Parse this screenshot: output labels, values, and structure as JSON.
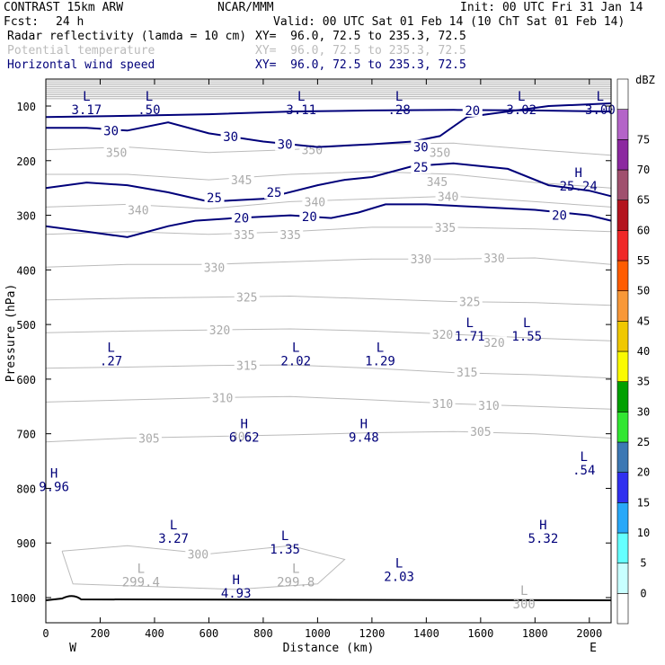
{
  "header": {
    "model": "CONTRAST 15km ARW",
    "source": "NCAR/MMM",
    "init": "Init: 00 UTC Fri 31 Jan 14",
    "fcst_label": "Fcst:",
    "fcst_value": "24 h",
    "valid": "Valid: 00 UTC Sat 01 Feb 14 (10 ChT Sat 01 Feb 14)"
  },
  "fields": [
    {
      "name": "Radar reflectivity (lamda = 10 cm)",
      "xy": "XY=  96.0, 72.5 to 235.3, 72.5",
      "color": "#000000"
    },
    {
      "name": "Potential temperature",
      "xy": "XY=  96.0, 72.5 to 235.3, 72.5",
      "color": "#bbbbbb"
    },
    {
      "name": "Horizontal wind speed",
      "xy": "XY=  96.0, 72.5 to 235.3, 72.5",
      "color": "#00007a"
    }
  ],
  "chart_data": {
    "type": "contour-cross-section",
    "xlabel": "Distance (km)",
    "ylabel": "Pressure (hPa)",
    "xlim": [
      0,
      2080
    ],
    "ylim_hpa": [
      1000,
      50
    ],
    "x_ticks": [
      0,
      200,
      400,
      600,
      800,
      1000,
      1200,
      1400,
      1600,
      1800,
      2000
    ],
    "y_ticks": [
      100,
      200,
      300,
      400,
      500,
      600,
      700,
      800,
      900,
      1000
    ],
    "x_end_labels": {
      "left": "W",
      "right": "E"
    },
    "theta_contours": [
      {
        "label": "350",
        "points": [
          [
            0,
            180
          ],
          [
            300,
            175
          ],
          [
            600,
            185
          ],
          [
            900,
            180
          ],
          [
            1200,
            170
          ],
          [
            1500,
            168
          ],
          [
            1800,
            180
          ],
          [
            2080,
            190
          ]
        ],
        "labels_at": [
          [
            260,
            185
          ],
          [
            980,
            180
          ],
          [
            1450,
            185
          ]
        ]
      },
      {
        "label": "345",
        "points": [
          [
            0,
            225
          ],
          [
            300,
            225
          ],
          [
            600,
            235
          ],
          [
            900,
            225
          ],
          [
            1200,
            220
          ],
          [
            1500,
            225
          ],
          [
            1800,
            240
          ],
          [
            2080,
            250
          ]
        ],
        "labels_at": [
          [
            720,
            235
          ],
          [
            1440,
            238
          ]
        ]
      },
      {
        "label": "340",
        "points": [
          [
            0,
            285
          ],
          [
            300,
            280
          ],
          [
            600,
            288
          ],
          [
            900,
            275
          ],
          [
            1200,
            270
          ],
          [
            1500,
            265
          ],
          [
            1800,
            275
          ],
          [
            2080,
            285
          ]
        ],
        "labels_at": [
          [
            340,
            290
          ],
          [
            990,
            275
          ],
          [
            1480,
            265
          ]
        ]
      },
      {
        "label": "335",
        "points": [
          [
            0,
            335
          ],
          [
            300,
            330
          ],
          [
            600,
            335
          ],
          [
            900,
            330
          ],
          [
            1200,
            322
          ],
          [
            1500,
            322
          ],
          [
            1800,
            325
          ],
          [
            2080,
            330
          ]
        ],
        "labels_at": [
          [
            730,
            335
          ],
          [
            900,
            335
          ],
          [
            1470,
            322
          ]
        ]
      },
      {
        "label": "330",
        "points": [
          [
            0,
            395
          ],
          [
            300,
            390
          ],
          [
            600,
            390
          ],
          [
            900,
            385
          ],
          [
            1200,
            380
          ],
          [
            1500,
            380
          ],
          [
            1800,
            378
          ],
          [
            2080,
            390
          ]
        ],
        "labels_at": [
          [
            620,
            395
          ],
          [
            1380,
            380
          ],
          [
            1650,
            378
          ]
        ]
      },
      {
        "label": "325",
        "points": [
          [
            0,
            455
          ],
          [
            300,
            452
          ],
          [
            600,
            450
          ],
          [
            900,
            448
          ],
          [
            1200,
            453
          ],
          [
            1500,
            458
          ],
          [
            1800,
            460
          ],
          [
            2080,
            465
          ]
        ],
        "labels_at": [
          [
            740,
            450
          ],
          [
            1560,
            458
          ]
        ]
      },
      {
        "label": "320",
        "points": [
          [
            0,
            515
          ],
          [
            300,
            512
          ],
          [
            600,
            510
          ],
          [
            900,
            508
          ],
          [
            1200,
            512
          ],
          [
            1500,
            518
          ],
          [
            1800,
            525
          ],
          [
            2080,
            530
          ]
        ],
        "labels_at": [
          [
            640,
            510
          ],
          [
            1460,
            518
          ],
          [
            1650,
            533
          ]
        ]
      },
      {
        "label": "315",
        "points": [
          [
            0,
            580
          ],
          [
            300,
            578
          ],
          [
            600,
            575
          ],
          [
            900,
            574
          ],
          [
            1200,
            580
          ],
          [
            1500,
            588
          ],
          [
            1800,
            592
          ],
          [
            2080,
            598
          ]
        ],
        "labels_at": [
          [
            740,
            575
          ],
          [
            1550,
            587
          ]
        ]
      },
      {
        "label": "310",
        "points": [
          [
            0,
            642
          ],
          [
            300,
            638
          ],
          [
            600,
            634
          ],
          [
            900,
            632
          ],
          [
            1200,
            638
          ],
          [
            1500,
            645
          ],
          [
            1800,
            650
          ],
          [
            2080,
            655
          ]
        ],
        "labels_at": [
          [
            650,
            634
          ],
          [
            1460,
            645
          ],
          [
            1630,
            648
          ]
        ]
      },
      {
        "label": "305",
        "points": [
          [
            0,
            715
          ],
          [
            300,
            708
          ],
          [
            600,
            705
          ],
          [
            900,
            702
          ],
          [
            1200,
            698
          ],
          [
            1500,
            696
          ],
          [
            1800,
            700
          ],
          [
            2080,
            708
          ]
        ],
        "labels_at": [
          [
            380,
            708
          ],
          [
            720,
            705
          ],
          [
            1600,
            696
          ]
        ]
      },
      {
        "label": "300",
        "points": [
          [
            60,
            915
          ],
          [
            300,
            905
          ],
          [
            600,
            920
          ],
          [
            900,
            905
          ],
          [
            1100,
            930
          ],
          [
            1000,
            975
          ],
          [
            700,
            985
          ],
          [
            400,
            980
          ],
          [
            100,
            975
          ],
          [
            60,
            915
          ]
        ],
        "labels_at": [
          [
            560,
            920
          ]
        ]
      }
    ],
    "wind_contours": [
      {
        "label": "30",
        "points": [
          [
            0,
            140
          ],
          [
            150,
            140
          ],
          [
            300,
            145
          ],
          [
            450,
            130
          ],
          [
            600,
            150
          ],
          [
            800,
            165
          ],
          [
            1000,
            175
          ],
          [
            1200,
            170
          ],
          [
            1350,
            165
          ],
          [
            1450,
            155
          ],
          [
            1550,
            120
          ],
          [
            1700,
            110
          ],
          [
            1850,
            100
          ],
          [
            2080,
            95
          ]
        ],
        "labels_at": [
          [
            240,
            145
          ],
          [
            680,
            156
          ],
          [
            880,
            170
          ],
          [
            1380,
            175
          ]
        ]
      },
      {
        "label": "25",
        "points": [
          [
            0,
            250
          ],
          [
            150,
            240
          ],
          [
            300,
            245
          ],
          [
            450,
            258
          ],
          [
            600,
            275
          ],
          [
            800,
            270
          ],
          [
            1000,
            245
          ],
          [
            1100,
            235
          ],
          [
            1200,
            230
          ],
          [
            1350,
            210
          ],
          [
            1500,
            205
          ],
          [
            1700,
            215
          ],
          [
            1850,
            245
          ],
          [
            2000,
            255
          ],
          [
            2080,
            265
          ]
        ],
        "labels_at": [
          [
            620,
            268
          ],
          [
            840,
            258
          ],
          [
            1380,
            212
          ]
        ]
      },
      {
        "label": "20",
        "points": [
          [
            0,
            320
          ],
          [
            150,
            330
          ],
          [
            300,
            340
          ],
          [
            450,
            320
          ],
          [
            550,
            310
          ],
          [
            700,
            305
          ],
          [
            900,
            300
          ],
          [
            1050,
            305
          ],
          [
            1150,
            295
          ],
          [
            1250,
            280
          ],
          [
            1400,
            280
          ],
          [
            1600,
            285
          ],
          [
            1800,
            290
          ],
          [
            2000,
            300
          ],
          [
            2080,
            310
          ]
        ],
        "labels_at": [
          [
            720,
            305
          ],
          [
            970,
            302
          ],
          [
            1890,
            300
          ]
        ]
      },
      {
        "label": "20",
        "points": [
          [
            0,
            120
          ],
          [
            300,
            118
          ],
          [
            600,
            115
          ],
          [
            900,
            110
          ],
          [
            1200,
            108
          ],
          [
            1500,
            107
          ],
          [
            1800,
            108
          ],
          [
            2080,
            110
          ]
        ],
        "labels_at": [
          [
            1570,
            108
          ]
        ]
      }
    ],
    "min_max_markers": [
      {
        "type": "L",
        "x": 150,
        "p": 90,
        "value": "3.17",
        "series": "theta"
      },
      {
        "type": "L",
        "x": 380,
        "p": 90,
        "value": ".50",
        "series": "theta"
      },
      {
        "type": "L",
        "x": 940,
        "p": 90,
        "value": "3.11",
        "series": "theta"
      },
      {
        "type": "L",
        "x": 1300,
        "p": 90,
        "value": ".28",
        "series": "theta"
      },
      {
        "type": "L",
        "x": 1750,
        "p": 90,
        "value": "3.02",
        "series": "theta"
      },
      {
        "type": "L",
        "x": 2040,
        "p": 90,
        "value": "3.00",
        "series": "theta"
      },
      {
        "type": "H",
        "x": 1960,
        "p": 230,
        "value": "25.24",
        "series": "wind"
      },
      {
        "type": "L",
        "x": 1560,
        "p": 505,
        "value": "1.71",
        "series": "wind"
      },
      {
        "type": "L",
        "x": 1770,
        "p": 505,
        "value": "1.55",
        "series": "wind"
      },
      {
        "type": "L",
        "x": 240,
        "p": 550,
        "value": ".27",
        "series": "wind"
      },
      {
        "type": "L",
        "x": 920,
        "p": 550,
        "value": "2.02",
        "series": "wind"
      },
      {
        "type": "L",
        "x": 1230,
        "p": 550,
        "value": "1.29",
        "series": "wind"
      },
      {
        "type": "H",
        "x": 730,
        "p": 690,
        "value": "6.62",
        "series": "wind"
      },
      {
        "type": "H",
        "x": 1170,
        "p": 690,
        "value": "9.48",
        "series": "wind"
      },
      {
        "type": "L",
        "x": 1980,
        "p": 750,
        "value": ".54",
        "series": "wind"
      },
      {
        "type": "H",
        "x": 30,
        "p": 780,
        "value": "9.96",
        "series": "wind"
      },
      {
        "type": "L",
        "x": 470,
        "p": 875,
        "value": "3.27",
        "series": "wind"
      },
      {
        "type": "H",
        "x": 1830,
        "p": 875,
        "value": "5.32",
        "series": "wind"
      },
      {
        "type": "L",
        "x": 880,
        "p": 895,
        "value": "1.35",
        "series": "wind"
      },
      {
        "type": "L",
        "x": 1300,
        "p": 945,
        "value": "2.03",
        "series": "wind"
      },
      {
        "type": "L",
        "x": 350,
        "p": 955,
        "value": "299.4",
        "series": "theta"
      },
      {
        "type": "L",
        "x": 920,
        "p": 955,
        "value": "299.8",
        "series": "theta"
      },
      {
        "type": "H",
        "x": 700,
        "p": 975,
        "value": "4.93",
        "series": "wind"
      },
      {
        "type": "L",
        "x": 1760,
        "p": 995,
        "value": "300",
        "series": "theta"
      }
    ],
    "colorbar": {
      "title": "dBZ",
      "levels": [
        0,
        5,
        10,
        15,
        20,
        25,
        30,
        35,
        40,
        45,
        50,
        55,
        60,
        65,
        70,
        75
      ],
      "colors": [
        "#ffffff",
        "#c8ffff",
        "#64ffff",
        "#28a8f8",
        "#3030f0",
        "#3c78b4",
        "#32e632",
        "#00a000",
        "#fafa00",
        "#f0c800",
        "#f89838",
        "#ff5c00",
        "#f02828",
        "#b4141e",
        "#a0506e",
        "#8c28a0",
        "#b464c8",
        "#ffffff"
      ]
    }
  }
}
